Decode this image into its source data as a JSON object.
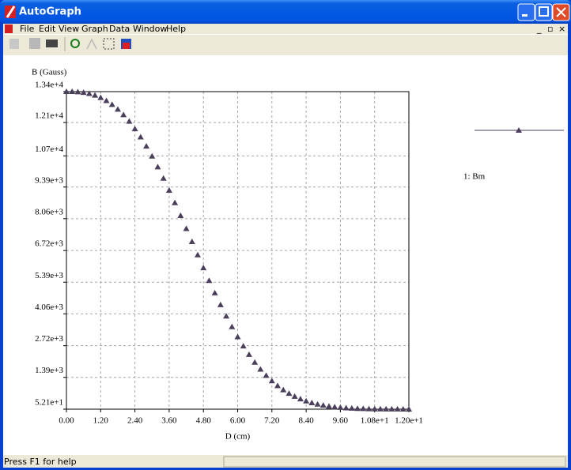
{
  "window": {
    "title": "AutoGraph"
  },
  "menu": [
    "File",
    "Edit",
    "View",
    "Graph",
    "Data",
    "Window",
    "Help"
  ],
  "status_bar": "Press F1 for help",
  "chart_data": {
    "type": "scatter",
    "xlabel": "D (cm)",
    "ylabel": "B (Gauss)",
    "xlim": [
      0,
      12
    ],
    "ylim": [
      52.1,
      13400
    ],
    "xticks": [
      {
        "value": 0,
        "label": "0.00"
      },
      {
        "value": 1.2,
        "label": "1.20"
      },
      {
        "value": 2.4,
        "label": "2.40"
      },
      {
        "value": 3.6,
        "label": "3.60"
      },
      {
        "value": 4.8,
        "label": "4.80"
      },
      {
        "value": 6,
        "label": "6.00"
      },
      {
        "value": 7.2,
        "label": "7.20"
      },
      {
        "value": 8.4,
        "label": "8.40"
      },
      {
        "value": 9.6,
        "label": "9.60"
      },
      {
        "value": 10.8,
        "label": "1.08e+1"
      },
      {
        "value": 12,
        "label": "1.20e+1"
      }
    ],
    "yticks": [
      {
        "value": 52.1,
        "label": "5.21e+1"
      },
      {
        "value": 1390,
        "label": "1.39e+3"
      },
      {
        "value": 2720,
        "label": "2.72e+3"
      },
      {
        "value": 4060,
        "label": "4.06e+3"
      },
      {
        "value": 5390,
        "label": "5.39e+3"
      },
      {
        "value": 6720,
        "label": "6.72e+3"
      },
      {
        "value": 8060,
        "label": "8.06e+3"
      },
      {
        "value": 9390,
        "label": "9.39e+3"
      },
      {
        "value": 10700,
        "label": "1.07e+4"
      },
      {
        "value": 12100,
        "label": "1.21e+4"
      },
      {
        "value": 13400,
        "label": "1.34e+4"
      }
    ],
    "grid": true,
    "x": [
      0,
      0.2,
      0.4,
      0.6,
      0.8,
      1.0,
      1.2,
      1.4,
      1.6,
      1.8,
      2.0,
      2.2,
      2.4,
      2.6,
      2.8,
      3.0,
      3.2,
      3.4,
      3.6,
      3.8,
      4.0,
      4.2,
      4.4,
      4.6,
      4.8,
      5.0,
      5.2,
      5.4,
      5.6,
      5.8,
      6.0,
      6.2,
      6.4,
      6.6,
      6.8,
      7.0,
      7.2,
      7.4,
      7.6,
      7.8,
      8.0,
      8.2,
      8.4,
      8.6,
      8.8,
      9.0,
      9.2,
      9.4,
      9.6,
      9.8,
      10.0,
      10.2,
      10.4,
      10.6,
      10.8,
      11.0,
      11.2,
      11.4,
      11.6,
      11.8,
      12.0
    ],
    "series": [
      {
        "name": "1: Bm",
        "color": "#4b3f5c",
        "values": [
          13400,
          13398,
          13389,
          13363,
          13316,
          13246,
          13148,
          13019,
          12857,
          12658,
          12423,
          12149,
          11837,
          11489,
          11103,
          10685,
          10234,
          9754,
          9251,
          8728,
          8189,
          7641,
          7090,
          6537,
          5991,
          5457,
          4937,
          4438,
          3961,
          3512,
          3092,
          2703,
          2346,
          2021,
          1730,
          1469,
          1238,
          1037,
          863,
          714,
          587,
          481,
          392,
          319,
          260,
          212,
          174,
          145,
          121,
          103,
          90,
          79,
          71,
          66,
          62,
          59,
          57,
          56,
          55,
          54,
          53
        ]
      }
    ]
  }
}
